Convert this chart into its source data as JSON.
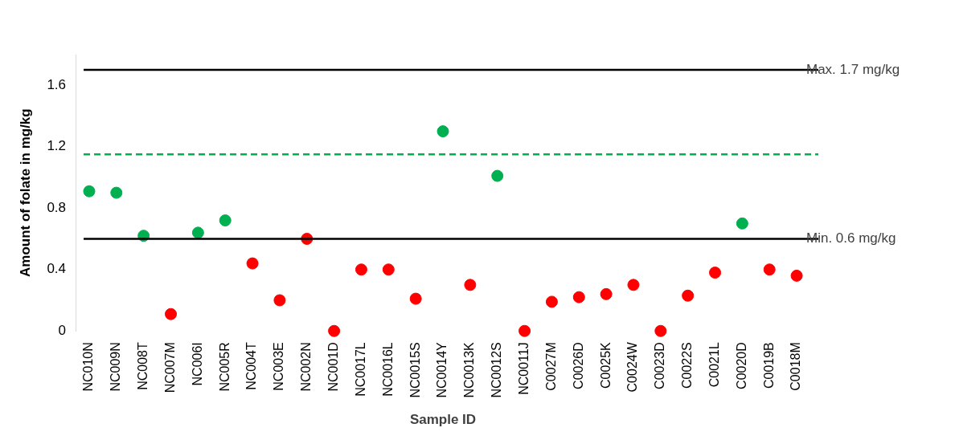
{
  "chart_data": {
    "type": "scatter",
    "xlabel": "Sample ID",
    "ylabel": "Amount of folate in mg/kg",
    "categories": [
      "NC010N",
      "NC009N",
      "NC008T",
      "NC007M",
      "NC006I",
      "NC005R",
      "NC004T",
      "NC003E",
      "NC002N",
      "NC001D",
      "NC0017L",
      "NC0016L",
      "NC0015S",
      "NC0014Y",
      "NC0013K",
      "NC0012S",
      "NC0011J",
      "C0027M",
      "C0026D",
      "C0025K",
      "C0024W",
      "C0023D",
      "C0022S",
      "C0021L",
      "C0020D",
      "C0019B",
      "C0018M"
    ],
    "values": [
      0.91,
      0.9,
      0.62,
      0.11,
      0.64,
      0.72,
      0.44,
      0.2,
      0.6,
      0,
      0.4,
      0.4,
      0.21,
      1.3,
      0.3,
      1.01,
      0,
      0.19,
      0.22,
      0.24,
      0.3,
      0,
      0.23,
      0.38,
      0.7,
      0.4,
      0.36
    ],
    "colors": [
      "#00b050",
      "#00b050",
      "#00b050",
      "#ff0000",
      "#00b050",
      "#00b050",
      "#ff0000",
      "#ff0000",
      "#ff0000",
      "#ff0000",
      "#ff0000",
      "#ff0000",
      "#ff0000",
      "#00b050",
      "#ff0000",
      "#00b050",
      "#ff0000",
      "#ff0000",
      "#ff0000",
      "#ff0000",
      "#ff0000",
      "#ff0000",
      "#ff0000",
      "#ff0000",
      "#00b050",
      "#ff0000",
      "#ff0000"
    ],
    "marker": "circle",
    "ylim": [
      0,
      1.8
    ],
    "yticks": [
      0,
      0.4,
      0.8,
      1.2,
      1.6
    ],
    "ref_lines": [
      {
        "axis": "y",
        "value": 1.7,
        "label": "Max. 1.7 mg/kg",
        "color": "#000000",
        "line_style": "solid"
      },
      {
        "axis": "y",
        "value": 0.6,
        "label": "Min. 0.6 mg/kg",
        "color": "#000000",
        "line_style": "solid"
      },
      {
        "axis": "y",
        "value": 1.15,
        "color": "#00b050",
        "line_style": "dashed"
      }
    ],
    "grid": false,
    "legend": false
  }
}
